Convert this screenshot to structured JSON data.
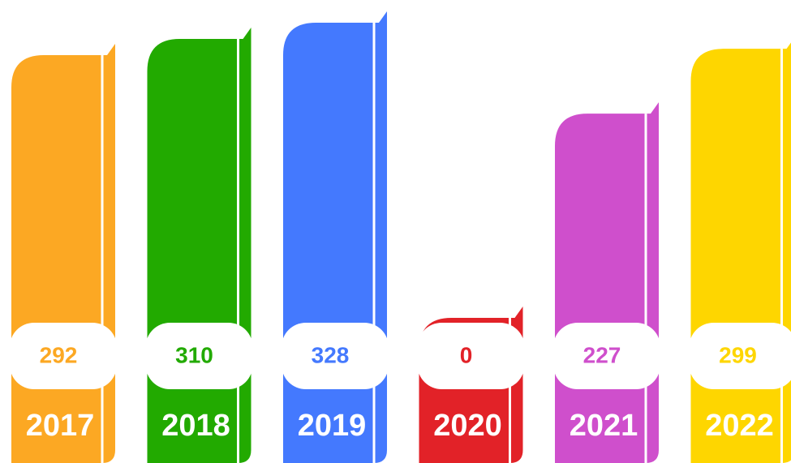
{
  "chart_data": {
    "type": "bar",
    "categories": [
      "2017",
      "2018",
      "2019",
      "2020",
      "2021",
      "2022"
    ],
    "values": [
      292,
      310,
      328,
      0,
      227,
      299
    ],
    "colors": [
      "#fca823",
      "#22aa00",
      "#4479fe",
      "#e22228",
      "#cf4fcc",
      "#fed600"
    ]
  }
}
